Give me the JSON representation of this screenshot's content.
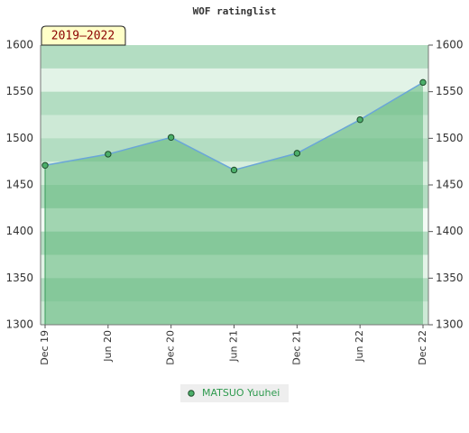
{
  "chart_data": {
    "type": "area-line",
    "title": "WOF ratinglist",
    "annotation": "2019–2022",
    "categories": [
      "Dec 19",
      "Jun 20",
      "Dec 20",
      "Jun 21",
      "Dec 21",
      "Jun 22",
      "Dec 22"
    ],
    "series": [
      {
        "name": "MATSUO Yuuhei",
        "color": "#4caf6a",
        "line_color": "#6aa6d8",
        "area_color": "#5fb77a",
        "values": [
          1471,
          1483,
          1501,
          1466,
          1484,
          1520,
          1560
        ]
      }
    ],
    "ylim": [
      1300,
      1600
    ],
    "yticks": [
      1300,
      1350,
      1400,
      1450,
      1500,
      1550,
      1600
    ],
    "grid": true,
    "legend": "bottom"
  }
}
